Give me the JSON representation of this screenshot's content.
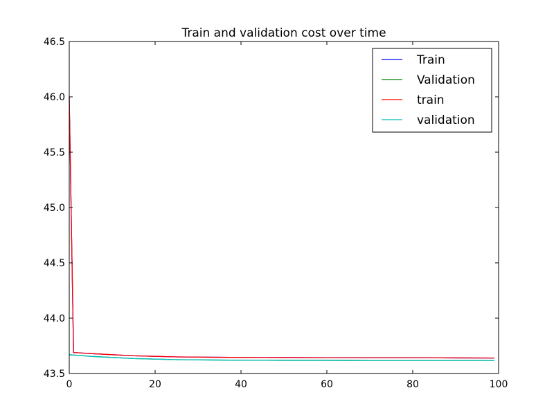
{
  "chart_data": {
    "type": "line",
    "title": "Train and validation cost over time",
    "xlabel": "",
    "ylabel": "",
    "xlim": [
      0,
      100
    ],
    "ylim": [
      43.5,
      46.5
    ],
    "x_ticks": [
      0,
      20,
      40,
      60,
      80,
      100
    ],
    "x_tick_labels": [
      "0",
      "20",
      "40",
      "60",
      "80",
      "100"
    ],
    "y_ticks": [
      43.5,
      44.0,
      44.5,
      45.0,
      45.5,
      46.0,
      46.5
    ],
    "y_tick_labels": [
      "43.5",
      "44.0",
      "44.5",
      "45.0",
      "45.5",
      "46.0",
      "46.5"
    ],
    "grid": false,
    "legend_position": "top-right",
    "series": [
      {
        "name": "Train",
        "color": "#0000ff",
        "x": [
          0,
          1,
          5,
          10,
          15,
          20,
          25,
          30,
          40,
          50,
          60,
          70,
          80,
          90,
          99
        ],
        "y": [
          46.0,
          43.69,
          43.68,
          43.67,
          43.66,
          43.655,
          43.65,
          43.648,
          43.645,
          43.644,
          43.643,
          43.642,
          43.642,
          43.641,
          43.64
        ]
      },
      {
        "name": "Validation",
        "color": "#008000",
        "x": [
          0,
          5,
          10,
          15,
          20,
          25,
          30,
          40,
          50,
          60,
          70,
          80,
          90,
          99
        ],
        "y": [
          43.67,
          43.655,
          43.645,
          43.635,
          43.63,
          43.625,
          43.623,
          43.62,
          43.619,
          43.619,
          43.618,
          43.618,
          43.618,
          43.618
        ]
      },
      {
        "name": "train",
        "color": "#ff0000",
        "x": [
          0,
          1,
          5,
          10,
          15,
          20,
          25,
          30,
          40,
          50,
          60,
          70,
          80,
          90,
          99
        ],
        "y": [
          46.0,
          43.69,
          43.68,
          43.67,
          43.66,
          43.655,
          43.65,
          43.648,
          43.645,
          43.644,
          43.643,
          43.642,
          43.642,
          43.641,
          43.64
        ]
      },
      {
        "name": "validation",
        "color": "#00bfbf",
        "x": [
          0,
          5,
          10,
          15,
          20,
          25,
          30,
          40,
          50,
          60,
          70,
          80,
          90,
          99
        ],
        "y": [
          43.67,
          43.655,
          43.645,
          43.635,
          43.63,
          43.625,
          43.623,
          43.62,
          43.619,
          43.619,
          43.618,
          43.618,
          43.618,
          43.618
        ]
      }
    ]
  }
}
